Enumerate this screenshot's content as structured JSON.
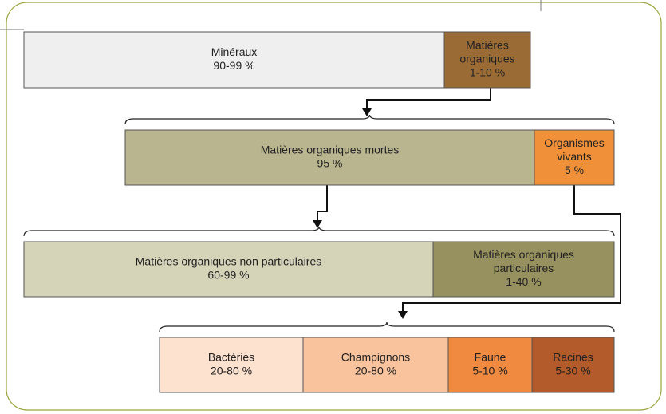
{
  "rows": [
    {
      "boxes": [
        {
          "label": [
            "Minéraux"
          ],
          "value": "90-99 %"
        },
        {
          "label": [
            "Matières",
            "organiques"
          ],
          "value": "1-10 %"
        }
      ]
    },
    {
      "boxes": [
        {
          "label": [
            "Matières organiques mortes"
          ],
          "value": "95 %"
        },
        {
          "label": [
            "Organismes",
            "vivants"
          ],
          "value": "5 %"
        }
      ]
    },
    {
      "boxes": [
        {
          "label": [
            "Matières organiques non particulaires"
          ],
          "value": "60-99 %"
        },
        {
          "label": [
            "Matières organiques",
            "particulaires"
          ],
          "value": "1-40 %"
        }
      ]
    },
    {
      "boxes": [
        {
          "label": [
            "Bactéries"
          ],
          "value": "20-80 %"
        },
        {
          "label": [
            "Champignons"
          ],
          "value": "20-80 %"
        },
        {
          "label": [
            "Faune"
          ],
          "value": "5-10 %"
        },
        {
          "label": [
            "Racines"
          ],
          "value": "5-30 %"
        }
      ]
    }
  ]
}
